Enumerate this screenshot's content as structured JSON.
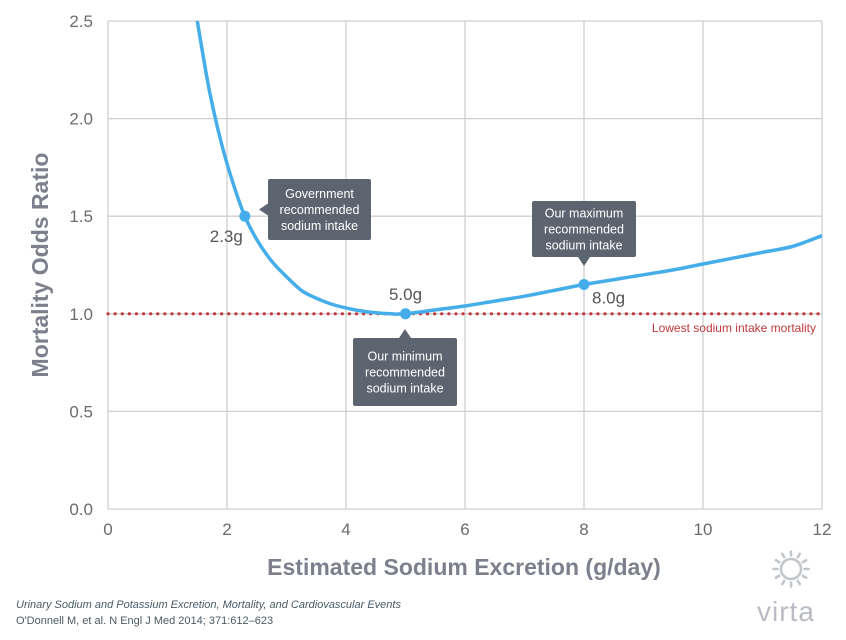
{
  "chart_data": {
    "type": "line",
    "xlabel": "Estimated Sodium Excretion (g/day)",
    "ylabel": "Mortality Odds Ratio",
    "xlim": [
      0,
      12
    ],
    "ylim": [
      0,
      2.5
    ],
    "xticks": [
      "0",
      "2",
      "4",
      "6",
      "8",
      "10",
      "12"
    ],
    "yticks": [
      "0.0",
      "0.5",
      "1.0",
      "1.5",
      "2.0",
      "2.5"
    ],
    "grid": true,
    "series": [
      {
        "color": "#45aeea",
        "x": [
          1.5,
          1.7,
          1.9,
          2.1,
          2.3,
          2.5,
          2.75,
          3.0,
          3.25,
          3.5,
          3.75,
          4.0,
          4.25,
          4.5,
          4.75,
          5.0,
          5.5,
          6.0,
          6.5,
          7.0,
          7.5,
          8.0,
          8.5,
          9.0,
          9.5,
          10.0,
          10.5,
          11.0,
          11.5,
          12.0
        ],
        "y": [
          2.5,
          2.15,
          1.88,
          1.67,
          1.5,
          1.38,
          1.27,
          1.19,
          1.12,
          1.08,
          1.05,
          1.03,
          1.015,
          1.005,
          1.0,
          1.0,
          1.02,
          1.04,
          1.065,
          1.09,
          1.12,
          1.15,
          1.175,
          1.2,
          1.225,
          1.255,
          1.285,
          1.315,
          1.345,
          1.4
        ]
      }
    ],
    "reference_line": {
      "y": 1.0,
      "label": "Lowest sodium intake mortality",
      "color": "#c0393b"
    },
    "highlight_points": [
      {
        "x": 2.3,
        "y": 1.5,
        "label": "2.3g",
        "callout": [
          "Government",
          "recommended",
          "sodium intake"
        ]
      },
      {
        "x": 5.0,
        "y": 1.0,
        "label": "5.0g",
        "callout": [
          "Our minimum",
          "recommended",
          "sodium intake"
        ]
      },
      {
        "x": 8.0,
        "y": 1.15,
        "label": "8.0g",
        "callout": [
          "Our maximum",
          "recommended",
          "sodium intake"
        ]
      }
    ]
  },
  "citation": {
    "title": "Urinary Sodium and Potassium Excretion, Mortality, and Cardiovascular Events",
    "reference": "O'Donnell M, et al. N Engl J Med 2014; 371:612–623"
  },
  "brand": {
    "name": "virta",
    "logo_icon": "sun-logo-icon"
  },
  "colors": {
    "curve": "#45aeea",
    "grid": "#cfcfcf",
    "callout": "#5c6470",
    "reference": "#c0393b"
  }
}
